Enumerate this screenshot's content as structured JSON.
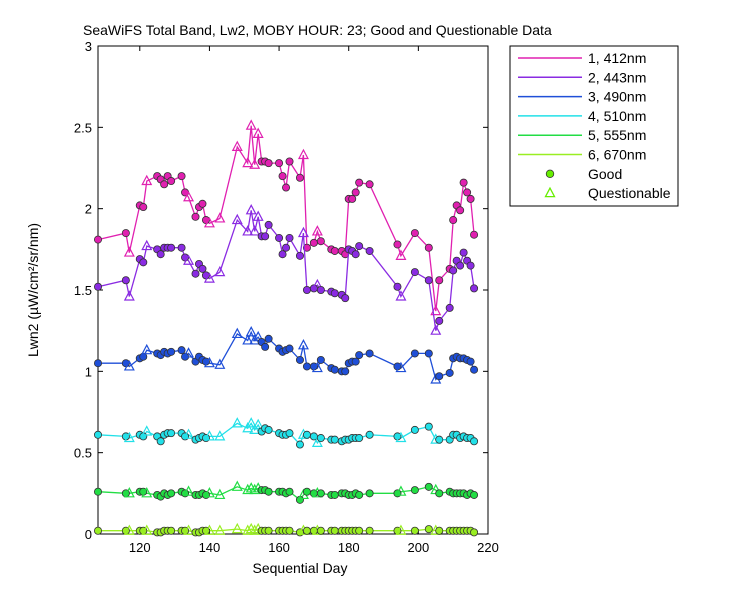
{
  "chart_data": {
    "type": "line",
    "title": "SeaWiFS Total Band, Lw2, MOBY HOUR: 23;  Good and Questionable Data",
    "xlabel": "Sequential Day",
    "ylabel": "Lwn2 (µW/cm²/sr/nm)",
    "xlim": [
      108,
      220
    ],
    "ylim": [
      0,
      3
    ],
    "xticks": [
      120,
      140,
      160,
      180,
      200,
      220
    ],
    "yticks": [
      0,
      0.5,
      1,
      1.5,
      2,
      2.5,
      3
    ],
    "grid": false,
    "legend_position": "top-right outside",
    "legend": {
      "good_label": "Good",
      "questionable_label": "Questionable",
      "good_color": "#66ee00",
      "questionable_color": "#66ee00"
    },
    "x": [
      108,
      116,
      117,
      120,
      121,
      122,
      125,
      126,
      127,
      128,
      129,
      132,
      133,
      134,
      136,
      137,
      138,
      139,
      140,
      143,
      148,
      151,
      152,
      153,
      154,
      155,
      156,
      157,
      160,
      161,
      162,
      163,
      166,
      167,
      168,
      170,
      171,
      172,
      175,
      176,
      178,
      179,
      180,
      181,
      182,
      183,
      186,
      194,
      195,
      199,
      203,
      205,
      206,
      209,
      210,
      211,
      212,
      213,
      214,
      215,
      216
    ],
    "series": [
      {
        "name": "1, 412nm",
        "color": "#e020b0",
        "values": [
          1.81,
          1.85,
          1.73,
          2.02,
          2.01,
          2.17,
          2.2,
          2.18,
          2.15,
          2.2,
          2.17,
          2.2,
          2.1,
          2.07,
          1.95,
          2.01,
          2.03,
          1.93,
          1.91,
          1.94,
          2.38,
          2.28,
          2.51,
          2.27,
          2.46,
          2.29,
          2.29,
          2.28,
          2.28,
          2.2,
          2.13,
          2.29,
          2.19,
          2.33,
          1.76,
          1.79,
          1.86,
          1.8,
          1.75,
          1.74,
          1.74,
          1.72,
          2.06,
          2.06,
          2.1,
          2.16,
          2.15,
          1.78,
          1.71,
          1.85,
          1.76,
          1.37,
          1.56,
          1.63,
          1.93,
          2.02,
          1.99,
          2.16,
          2.1,
          2.06,
          1.84
        ]
      },
      {
        "name": "2, 443nm",
        "color": "#8a2be2",
        "values": [
          1.52,
          1.56,
          1.46,
          1.69,
          1.67,
          1.77,
          1.75,
          1.72,
          1.76,
          1.76,
          1.76,
          1.76,
          1.7,
          1.68,
          1.6,
          1.66,
          1.63,
          1.59,
          1.57,
          1.61,
          1.93,
          1.86,
          1.99,
          1.86,
          1.95,
          1.83,
          1.83,
          1.9,
          1.82,
          1.72,
          1.76,
          1.82,
          1.71,
          1.85,
          1.5,
          1.51,
          1.53,
          1.5,
          1.49,
          1.48,
          1.47,
          1.45,
          1.75,
          1.74,
          1.72,
          1.77,
          1.74,
          1.52,
          1.46,
          1.61,
          1.56,
          1.25,
          1.31,
          1.39,
          1.62,
          1.68,
          1.65,
          1.73,
          1.68,
          1.65,
          1.51
        ]
      },
      {
        "name": "3, 490nm",
        "color": "#1f4fd8",
        "values": [
          1.05,
          1.05,
          1.03,
          1.08,
          1.09,
          1.13,
          1.11,
          1.1,
          1.12,
          1.11,
          1.12,
          1.13,
          1.09,
          1.11,
          1.06,
          1.09,
          1.07,
          1.06,
          1.05,
          1.04,
          1.23,
          1.19,
          1.24,
          1.19,
          1.21,
          1.18,
          1.15,
          1.2,
          1.14,
          1.12,
          1.13,
          1.14,
          1.07,
          1.16,
          1.03,
          1.03,
          1.02,
          1.07,
          1.02,
          1.01,
          1.0,
          1.0,
          1.05,
          1.06,
          1.06,
          1.1,
          1.11,
          1.03,
          1.02,
          1.11,
          1.11,
          0.95,
          0.97,
          0.99,
          1.08,
          1.09,
          1.08,
          1.08,
          1.07,
          1.06,
          1.01
        ]
      },
      {
        "name": "4, 510nm",
        "color": "#22e0e8",
        "values": [
          0.61,
          0.6,
          0.59,
          0.61,
          0.6,
          0.63,
          0.6,
          0.57,
          0.61,
          0.62,
          0.62,
          0.62,
          0.6,
          0.61,
          0.58,
          0.59,
          0.6,
          0.59,
          0.6,
          0.6,
          0.68,
          0.65,
          0.68,
          0.64,
          0.67,
          0.63,
          0.65,
          0.64,
          0.62,
          0.61,
          0.61,
          0.62,
          0.55,
          0.61,
          0.61,
          0.6,
          0.56,
          0.59,
          0.58,
          0.58,
          0.57,
          0.58,
          0.58,
          0.59,
          0.59,
          0.59,
          0.61,
          0.6,
          0.59,
          0.64,
          0.66,
          0.58,
          0.58,
          0.58,
          0.61,
          0.61,
          0.59,
          0.6,
          0.59,
          0.59,
          0.57
        ]
      },
      {
        "name": "5, 555nm",
        "color": "#22dd44",
        "values": [
          0.26,
          0.25,
          0.25,
          0.26,
          0.26,
          0.25,
          0.24,
          0.23,
          0.25,
          0.24,
          0.25,
          0.26,
          0.25,
          0.26,
          0.24,
          0.24,
          0.25,
          0.24,
          0.25,
          0.24,
          0.29,
          0.27,
          0.28,
          0.27,
          0.28,
          0.27,
          0.27,
          0.26,
          0.26,
          0.26,
          0.25,
          0.26,
          0.21,
          0.24,
          0.26,
          0.25,
          0.25,
          0.25,
          0.24,
          0.24,
          0.25,
          0.25,
          0.24,
          0.24,
          0.25,
          0.24,
          0.25,
          0.25,
          0.26,
          0.27,
          0.29,
          0.27,
          0.25,
          0.26,
          0.25,
          0.25,
          0.25,
          0.25,
          0.24,
          0.25,
          0.24
        ]
      },
      {
        "name": "6, 670nm",
        "color": "#99ee22",
        "values": [
          0.02,
          0.02,
          0.02,
          0.02,
          0.02,
          0.02,
          0.01,
          0.01,
          0.02,
          0.02,
          0.02,
          0.02,
          0.02,
          0.02,
          0.01,
          0.01,
          0.02,
          0.02,
          0.02,
          0.02,
          0.03,
          0.02,
          0.03,
          0.02,
          0.03,
          0.02,
          0.02,
          0.02,
          0.02,
          0.02,
          0.02,
          0.02,
          0.01,
          0.02,
          0.02,
          0.02,
          0.02,
          0.02,
          0.02,
          0.02,
          0.02,
          0.02,
          0.02,
          0.02,
          0.02,
          0.02,
          0.02,
          0.02,
          0.02,
          0.02,
          0.03,
          0.02,
          0.02,
          0.02,
          0.02,
          0.02,
          0.02,
          0.02,
          0.02,
          0.02,
          0.01
        ]
      }
    ],
    "quality": [
      "good",
      "good",
      "questionable",
      "good",
      "good",
      "questionable",
      "good",
      "good",
      "good",
      "good",
      "good",
      "good",
      "good",
      "questionable",
      "good",
      "good",
      "good",
      "good",
      "questionable",
      "questionable",
      "questionable",
      "questionable",
      "questionable",
      "questionable",
      "questionable",
      "good",
      "good",
      "good",
      "good",
      "good",
      "good",
      "good",
      "good",
      "questionable",
      "good",
      "good",
      "questionable",
      "good",
      "good",
      "good",
      "good",
      "good",
      "good",
      "good",
      "good",
      "good",
      "good",
      "good",
      "questionable",
      "good",
      "good",
      "questionable",
      "good",
      "good",
      "good",
      "good",
      "good",
      "good",
      "good",
      "good",
      "good"
    ]
  }
}
